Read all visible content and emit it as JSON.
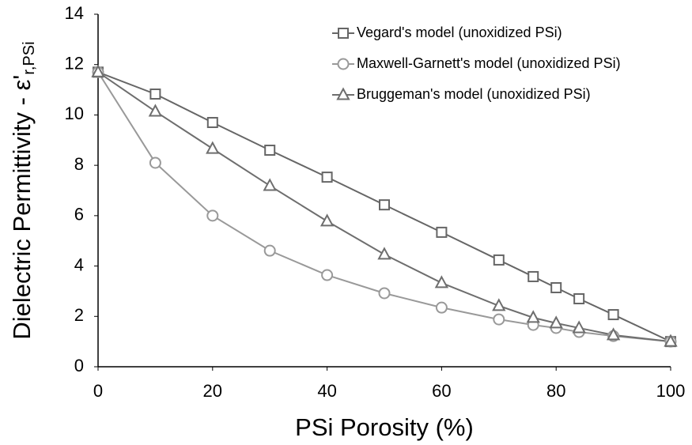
{
  "chart_data": {
    "type": "line",
    "y_label": "Dielectric Permittivity - ε'",
    "y_label_subscript": "r,PSi",
    "x_label": "PSi Porosity (%)",
    "x": [
      0,
      10,
      20,
      30,
      40,
      50,
      60,
      70,
      76,
      80,
      84,
      90,
      100
    ],
    "series": [
      {
        "name": "Vegard's model (unoxidized PSi)",
        "color": "#666666",
        "marker": "square",
        "values": [
          11.7,
          10.83,
          9.7,
          8.6,
          7.53,
          6.43,
          5.34,
          4.24,
          3.58,
          3.14,
          2.7,
          2.07,
          1.0
        ]
      },
      {
        "name": "Maxwell-Garnett's model (unoxidized PSi)",
        "color": "#999999",
        "marker": "circle",
        "values": [
          11.7,
          8.1,
          6.0,
          4.61,
          3.64,
          2.92,
          2.35,
          1.88,
          1.66,
          1.54,
          1.38,
          1.22,
          1.0
        ]
      },
      {
        "name": "Bruggeman's model (unoxidized PSi)",
        "color": "#6e6e6e",
        "marker": "triangle",
        "values": [
          11.7,
          10.14,
          8.66,
          7.19,
          5.78,
          4.46,
          3.33,
          2.42,
          1.95,
          1.73,
          1.54,
          1.26,
          1.0
        ]
      }
    ],
    "xlim": [
      0,
      100
    ],
    "xticks": [
      0,
      20,
      40,
      60,
      80,
      100
    ],
    "ylim": [
      0,
      14
    ],
    "yticks": [
      0,
      2,
      4,
      6,
      8,
      10,
      12,
      14
    ],
    "legend": "top-right"
  }
}
